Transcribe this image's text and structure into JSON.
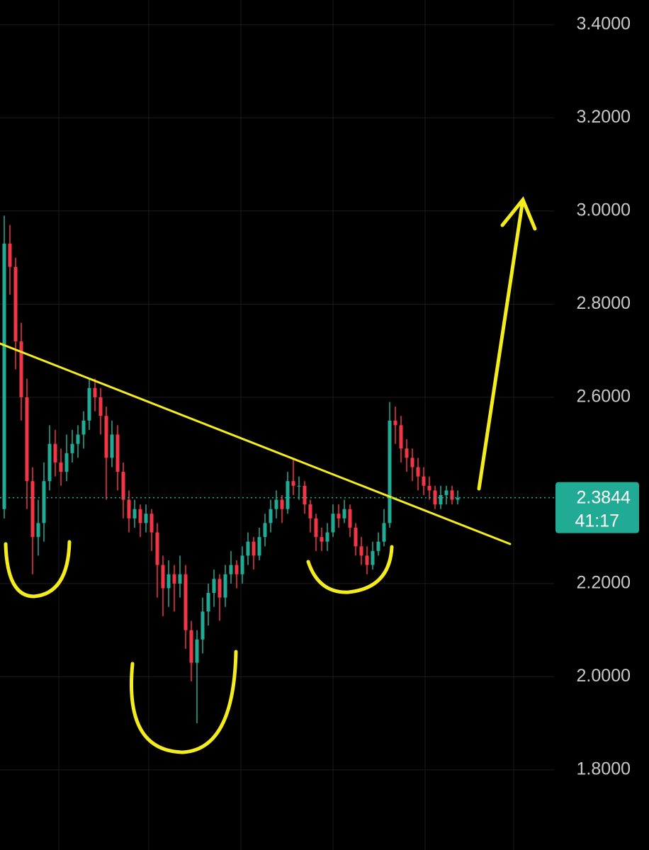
{
  "chart_data": {
    "type": "candlestick",
    "up_color": "#22ab94",
    "down_color": "#f23645",
    "ylim": [
      1.628,
      3.453
    ],
    "yticks": [
      {
        "value": 3.4,
        "label": "3.4000"
      },
      {
        "value": 3.2,
        "label": "3.2000"
      },
      {
        "value": 3.0,
        "label": "3.0000"
      },
      {
        "value": 2.8,
        "label": "2.8000"
      },
      {
        "value": 2.6,
        "label": "2.6000"
      },
      {
        "value": 2.2,
        "label": "2.2000"
      },
      {
        "value": 2.0,
        "label": "2.0000"
      },
      {
        "value": 1.8,
        "label": "1.8000"
      }
    ],
    "grid": true,
    "last_price": 2.3844,
    "countdown": "41:17",
    "candles": [
      [
        2.36,
        2.99,
        2.34,
        2.93
      ],
      [
        2.93,
        2.97,
        2.82,
        2.88
      ],
      [
        2.88,
        2.9,
        2.66,
        2.72
      ],
      [
        2.72,
        2.76,
        2.55,
        2.6
      ],
      [
        2.6,
        2.64,
        2.36,
        2.42
      ],
      [
        2.42,
        2.45,
        2.22,
        2.3
      ],
      [
        2.3,
        2.38,
        2.26,
        2.33
      ],
      [
        2.33,
        2.46,
        2.29,
        2.42
      ],
      [
        2.42,
        2.54,
        2.4,
        2.5
      ],
      [
        2.5,
        2.53,
        2.43,
        2.46
      ],
      [
        2.46,
        2.49,
        2.41,
        2.44
      ],
      [
        2.44,
        2.52,
        2.42,
        2.48
      ],
      [
        2.48,
        2.53,
        2.46,
        2.5
      ],
      [
        2.5,
        2.54,
        2.47,
        2.52
      ],
      [
        2.52,
        2.57,
        2.49,
        2.55
      ],
      [
        2.55,
        2.64,
        2.53,
        2.62
      ],
      [
        2.62,
        2.64,
        2.57,
        2.6
      ],
      [
        2.6,
        2.62,
        2.52,
        2.56
      ],
      [
        2.56,
        2.58,
        2.38,
        2.47
      ],
      [
        2.47,
        2.55,
        2.45,
        2.52
      ],
      [
        2.52,
        2.54,
        2.4,
        2.44
      ],
      [
        2.44,
        2.46,
        2.34,
        2.38
      ],
      [
        2.38,
        2.4,
        2.31,
        2.34
      ],
      [
        2.34,
        2.38,
        2.32,
        2.36
      ],
      [
        2.36,
        2.37,
        2.3,
        2.33
      ],
      [
        2.33,
        2.37,
        2.31,
        2.35
      ],
      [
        2.35,
        2.36,
        2.27,
        2.31
      ],
      [
        2.31,
        2.33,
        2.17,
        2.24
      ],
      [
        2.24,
        2.26,
        2.13,
        2.19
      ],
      [
        2.19,
        2.25,
        2.15,
        2.22
      ],
      [
        2.22,
        2.24,
        2.14,
        2.2
      ],
      [
        2.2,
        2.26,
        2.17,
        2.22
      ],
      [
        2.22,
        2.24,
        2.06,
        2.1
      ],
      [
        2.1,
        2.12,
        1.99,
        2.03
      ],
      [
        2.03,
        2.1,
        1.9,
        2.08
      ],
      [
        2.08,
        2.17,
        2.05,
        2.14
      ],
      [
        2.14,
        2.2,
        2.11,
        2.18
      ],
      [
        2.18,
        2.23,
        2.15,
        2.21
      ],
      [
        2.21,
        2.22,
        2.12,
        2.17
      ],
      [
        2.17,
        2.24,
        2.15,
        2.22
      ],
      [
        2.22,
        2.27,
        2.2,
        2.24
      ],
      [
        2.24,
        2.25,
        2.19,
        2.22
      ],
      [
        2.22,
        2.28,
        2.2,
        2.26
      ],
      [
        2.26,
        2.31,
        2.24,
        2.29
      ],
      [
        2.29,
        2.3,
        2.23,
        2.26
      ],
      [
        2.26,
        2.32,
        2.25,
        2.3
      ],
      [
        2.3,
        2.35,
        2.28,
        2.33
      ],
      [
        2.33,
        2.38,
        2.31,
        2.36
      ],
      [
        2.36,
        2.4,
        2.34,
        2.38
      ],
      [
        2.38,
        2.39,
        2.33,
        2.36
      ],
      [
        2.36,
        2.44,
        2.35,
        2.42
      ],
      [
        2.42,
        2.47,
        2.39,
        2.41
      ],
      [
        2.41,
        2.43,
        2.38,
        2.41
      ],
      [
        2.41,
        2.42,
        2.35,
        2.37
      ],
      [
        2.37,
        2.38,
        2.31,
        2.34
      ],
      [
        2.34,
        2.35,
        2.27,
        2.3
      ],
      [
        2.3,
        2.32,
        2.27,
        2.29
      ],
      [
        2.29,
        2.33,
        2.27,
        2.31
      ],
      [
        2.31,
        2.37,
        2.3,
        2.35
      ],
      [
        2.35,
        2.37,
        2.32,
        2.34
      ],
      [
        2.34,
        2.38,
        2.33,
        2.36
      ],
      [
        2.36,
        2.37,
        2.3,
        2.32
      ],
      [
        2.32,
        2.33,
        2.26,
        2.28
      ],
      [
        2.28,
        2.3,
        2.24,
        2.26
      ],
      [
        2.26,
        2.28,
        2.22,
        2.24
      ],
      [
        2.24,
        2.29,
        2.23,
        2.27
      ],
      [
        2.27,
        2.31,
        2.26,
        2.29
      ],
      [
        2.29,
        2.36,
        2.28,
        2.33
      ],
      [
        2.33,
        2.59,
        2.32,
        2.55
      ],
      [
        2.55,
        2.58,
        2.5,
        2.54
      ],
      [
        2.54,
        2.56,
        2.46,
        2.49
      ],
      [
        2.49,
        2.51,
        2.44,
        2.47
      ],
      [
        2.47,
        2.49,
        2.42,
        2.45
      ],
      [
        2.45,
        2.47,
        2.4,
        2.43
      ],
      [
        2.43,
        2.45,
        2.39,
        2.41
      ],
      [
        2.41,
        2.43,
        2.38,
        2.4
      ],
      [
        2.4,
        2.41,
        2.36,
        2.37
      ],
      [
        2.37,
        2.41,
        2.36,
        2.39
      ],
      [
        2.39,
        2.41,
        2.37,
        2.4
      ],
      [
        2.4,
        2.41,
        2.37,
        2.38
      ],
      [
        2.38,
        2.4,
        2.37,
        2.3844
      ]
    ]
  }
}
